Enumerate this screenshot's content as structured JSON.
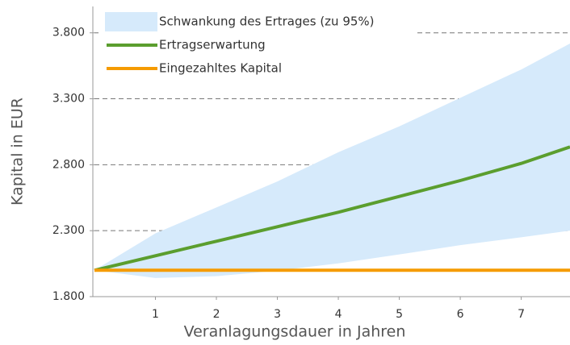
{
  "chart_data": {
    "type": "line",
    "xlabel": "Veranlagungsdauer in Jahren",
    "ylabel": "Kapital in EUR",
    "x": [
      0,
      1,
      2,
      3,
      4,
      5,
      6,
      7,
      7.8
    ],
    "series": [
      {
        "name": "Schwankung des Ertrages (zu 95%)",
        "color": "#d6eafb",
        "kind": "band",
        "upper": [
          2000,
          2280,
          2476,
          2673,
          2895,
          3091,
          3307,
          3522,
          3719
        ],
        "lower": [
          2000,
          1941,
          1955,
          1997,
          2052,
          2120,
          2190,
          2250,
          2300
        ]
      },
      {
        "name": "Ertragserwartung",
        "color": "#5b9e2e",
        "values": [
          2000,
          2110,
          2220,
          2330,
          2440,
          2560,
          2680,
          2810,
          2935
        ]
      },
      {
        "name": "Eingezahltes Kapital",
        "color": "#f59b00",
        "values": [
          2000,
          2000,
          2000,
          2000,
          2000,
          2000,
          2000,
          2000,
          2000
        ]
      }
    ],
    "xlim": [
      0,
      7.8
    ],
    "xticks": [
      1,
      2,
      3,
      4,
      5,
      6,
      7
    ],
    "ylim": [
      1800,
      4000
    ],
    "yticks": [
      {
        "value": 1800,
        "label": "1.800"
      },
      {
        "value": 2300,
        "label": "2.300"
      },
      {
        "value": 2800,
        "label": "2.800"
      },
      {
        "value": 3300,
        "label": "3.300"
      },
      {
        "value": 3800,
        "label": "3.800"
      }
    ],
    "grid": true
  }
}
